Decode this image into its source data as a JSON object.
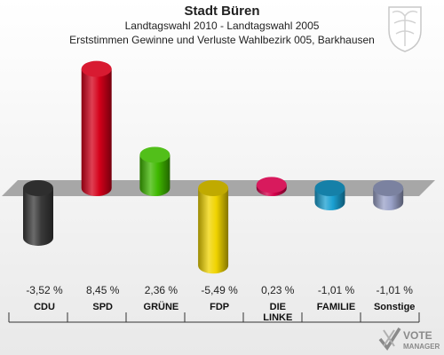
{
  "header": {
    "title": "Stadt Büren",
    "subtitle": "Landtagswahl 2010 - Landtagswahl 2005",
    "description": "Erststimmen Gewinne und Verluste Wahlbezirk 005, Barkhausen"
  },
  "logo": {
    "line1": "VOTE",
    "line2": "MANAGER",
    "icon": "checkmark-x-icon"
  },
  "crest": {
    "icon": "coat-of-arms-icon"
  },
  "chart_data": {
    "type": "bar",
    "title": "Stadt Büren",
    "subtitle": "Landtagswahl 2010 - Landtagswahl 2005",
    "categories": [
      "CDU",
      "SPD",
      "GRÜNE",
      "FDP",
      "DIE LINKE",
      "FAMILIE",
      "Sonstige"
    ],
    "category_lines": [
      [
        "CDU"
      ],
      [
        "SPD"
      ],
      [
        "GRÜNE"
      ],
      [
        "FDP"
      ],
      [
        "DIE",
        "LINKE"
      ],
      [
        "FAMILIE"
      ],
      [
        "Sonstige"
      ]
    ],
    "values": [
      -3.52,
      8.45,
      2.36,
      -5.49,
      0.23,
      -1.01,
      -1.01
    ],
    "value_labels": [
      "-3,52 %",
      "8,45 %",
      "2,36 %",
      "-5,49 %",
      "0,23 %",
      "-1,01 %",
      "-1,01 %"
    ],
    "colors": [
      "#3a3a3a",
      "#d4001a",
      "#3fb800",
      "#f0d400",
      "#d4004b",
      "#1aa0d2",
      "#9aa2c8"
    ],
    "ylim": [
      -5.49,
      8.45
    ],
    "grid": false,
    "legend": "none"
  }
}
